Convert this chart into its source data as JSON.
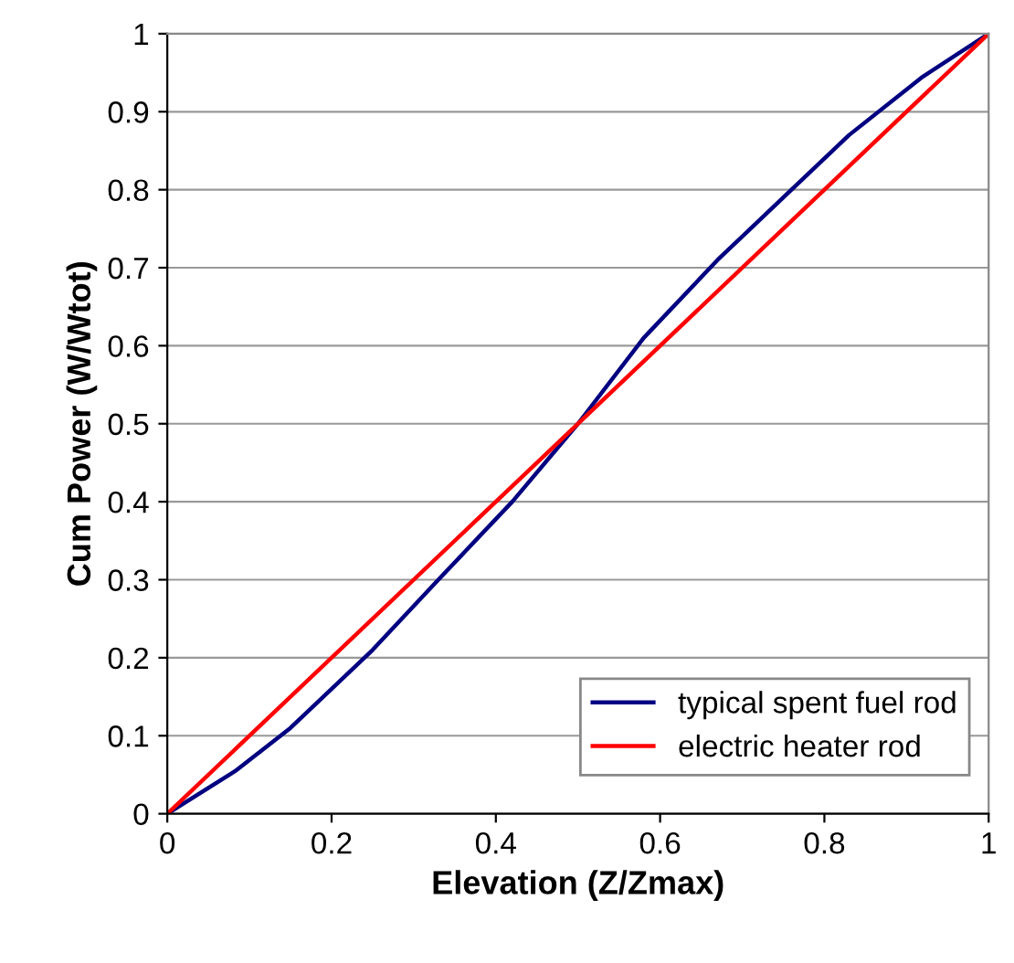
{
  "chart_data": {
    "type": "line",
    "xlabel": "Elevation (Z/Zmax)",
    "ylabel": "Cum Power (W/Wtot)",
    "xlim": [
      0,
      1
    ],
    "ylim": [
      0,
      1
    ],
    "xticks": [
      0,
      0.2,
      0.4,
      0.6,
      0.8,
      1
    ],
    "yticks": [
      0,
      0.1,
      0.2,
      0.3,
      0.4,
      0.5,
      0.6,
      0.7,
      0.8,
      0.9,
      1
    ],
    "grid": "y",
    "legend": "bottom right",
    "marker": "none",
    "line_style": "solid",
    "series": [
      {
        "name": "typical spent fuel rod",
        "color": "#000080",
        "x": [
          0,
          0.083,
          0.15,
          0.25,
          0.33,
          0.42,
          0.5,
          0.58,
          0.67,
          0.75,
          0.83,
          0.92,
          1
        ],
        "values": [
          0,
          0.055,
          0.11,
          0.21,
          0.3,
          0.4,
          0.5,
          0.61,
          0.71,
          0.79,
          0.87,
          0.945,
          1
        ]
      },
      {
        "name": "electric heater rod",
        "color": "#ff0000",
        "x": [
          0,
          1
        ],
        "values": [
          0,
          1
        ]
      }
    ]
  }
}
